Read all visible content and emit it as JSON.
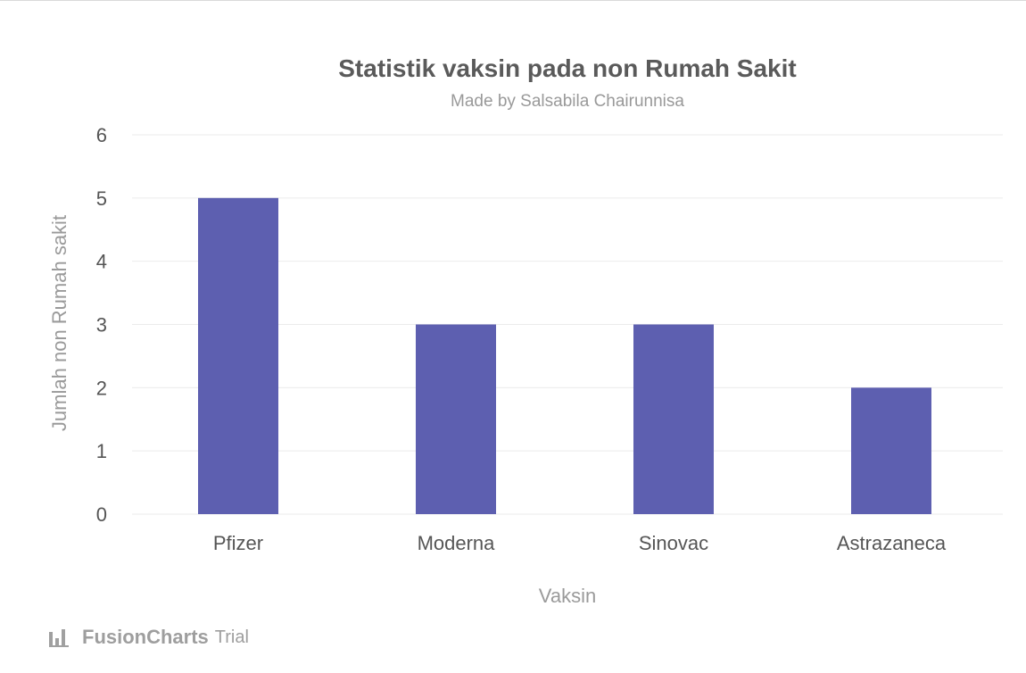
{
  "chart_data": {
    "type": "bar",
    "title": "Statistik vaksin pada non Rumah Sakit",
    "subtitle": "Made by Salsabila Chairunnisa",
    "xlabel": "Vaksin",
    "ylabel": "Jumlah non Rumah sakit",
    "categories": [
      "Pfizer",
      "Moderna",
      "Sinovac",
      "Astrazaneca"
    ],
    "values": [
      5,
      3,
      3,
      2
    ],
    "ylim": [
      0,
      6
    ],
    "yticks": [
      "0",
      "1",
      "2",
      "3",
      "4",
      "5",
      "6"
    ],
    "grid": true,
    "bar_color": "#5d5fb0"
  },
  "watermark": {
    "brand": "FusionCharts",
    "suffix": "Trial",
    "icon": "bar-chart-icon"
  }
}
